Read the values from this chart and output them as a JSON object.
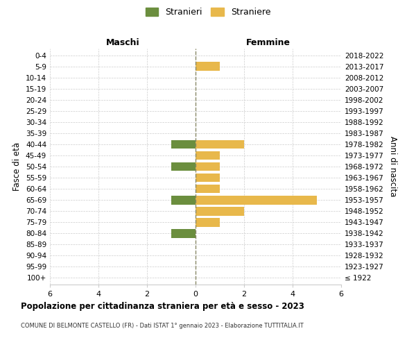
{
  "age_groups": [
    "100+",
    "95-99",
    "90-94",
    "85-89",
    "80-84",
    "75-79",
    "70-74",
    "65-69",
    "60-64",
    "55-59",
    "50-54",
    "45-49",
    "40-44",
    "35-39",
    "30-34",
    "25-29",
    "20-24",
    "15-19",
    "10-14",
    "5-9",
    "0-4"
  ],
  "birth_years": [
    "≤ 1922",
    "1923-1927",
    "1928-1932",
    "1933-1937",
    "1938-1942",
    "1943-1947",
    "1948-1952",
    "1953-1957",
    "1958-1962",
    "1963-1967",
    "1968-1972",
    "1973-1977",
    "1978-1982",
    "1983-1987",
    "1988-1992",
    "1993-1997",
    "1998-2002",
    "2003-2007",
    "2008-2012",
    "2013-2017",
    "2018-2022"
  ],
  "maschi": [
    0,
    0,
    0,
    0,
    1,
    0,
    0,
    1,
    0,
    0,
    1,
    0,
    1,
    0,
    0,
    0,
    0,
    0,
    0,
    0,
    0
  ],
  "femmine": [
    0,
    0,
    0,
    0,
    0,
    1,
    2,
    5,
    1,
    1,
    1,
    1,
    2,
    0,
    0,
    0,
    0,
    0,
    0,
    1,
    0
  ],
  "maschi_color": "#6B8E3E",
  "femmine_color": "#E8B84B",
  "title": "Popolazione per cittadinanza straniera per età e sesso - 2023",
  "subtitle": "COMUNE DI BELMONTE CASTELLO (FR) - Dati ISTAT 1° gennaio 2023 - Elaborazione TUTTITALIA.IT",
  "ylabel_left": "Fasce di età",
  "ylabel_right": "Anni di nascita",
  "xlabel_maschi": "Maschi",
  "xlabel_femmine": "Femmine",
  "legend_maschi": "Stranieri",
  "legend_femmine": "Straniere",
  "xlim": 6,
  "grid_color": "#cccccc",
  "background_color": "#ffffff",
  "bar_height": 0.8
}
